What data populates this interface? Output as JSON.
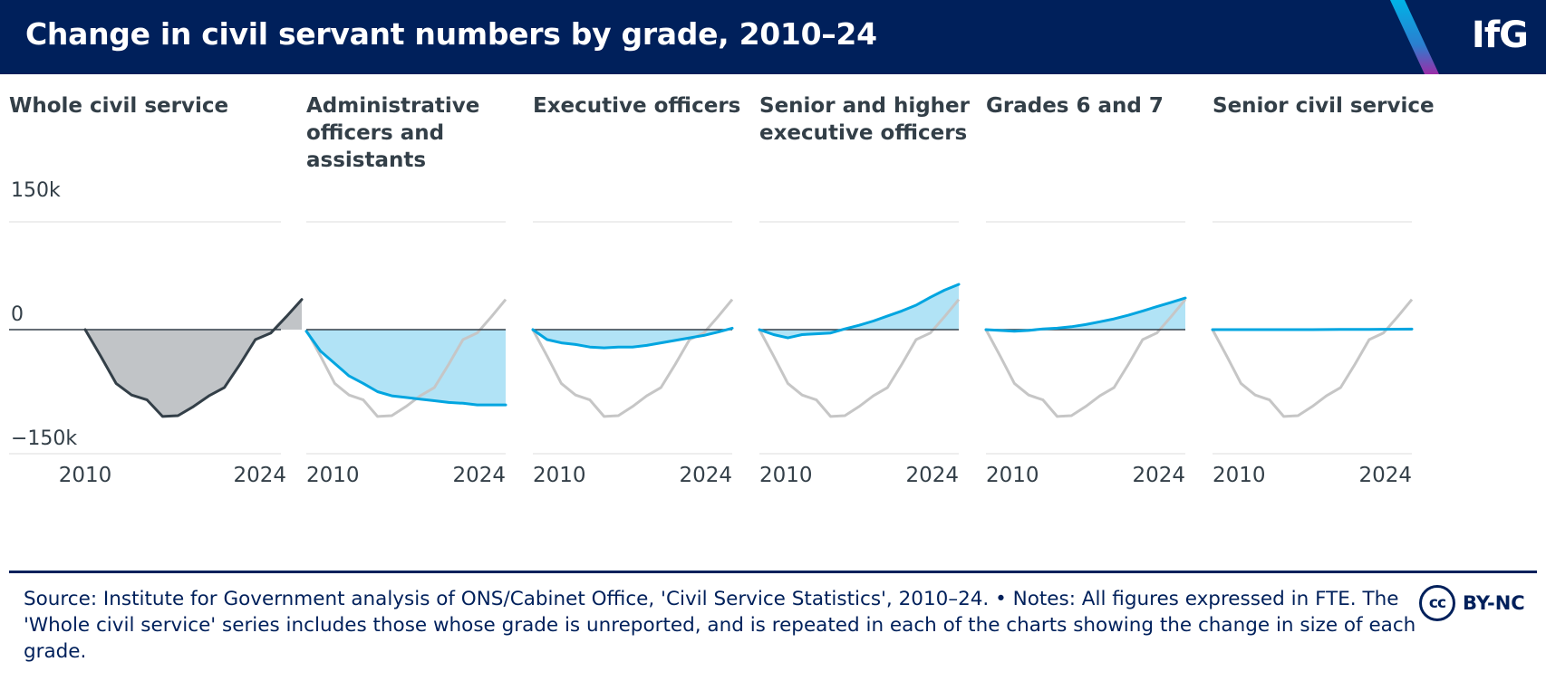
{
  "header": {
    "title": "Change in civil servant numbers by grade, 2010–24",
    "logo": "IfG"
  },
  "colors": {
    "navy": "#00205b",
    "whole_line": "#333f48",
    "whole_fill": "#c1c4c7",
    "grade_line": "#00a5e0",
    "grade_fill": "#b1e3f6",
    "reference_line": "#c6c6c6",
    "grid": "#e4e4e4",
    "zero_line": "#333f48"
  },
  "chart_data": {
    "type": "area",
    "units": "FTE change since 2010",
    "x": [
      2010,
      2011,
      2012,
      2013,
      2014,
      2015,
      2016,
      2017,
      2018,
      2019,
      2020,
      2021,
      2022,
      2023,
      2024
    ],
    "ylim": [
      -150000,
      150000
    ],
    "yticks": [
      {
        "value": 150000,
        "label": "150k"
      },
      {
        "value": 0,
        "label": "0"
      },
      {
        "value": -150000,
        "label": "−150k"
      }
    ],
    "xticks": [
      {
        "value": 2010,
        "label": "2010"
      },
      {
        "value": 2024,
        "label": "2024"
      }
    ],
    "reference_series": "Whole civil service",
    "series": [
      {
        "name": "Whole civil service",
        "values": [
          0,
          -32000,
          -65000,
          -79000,
          -85000,
          -105000,
          -104000,
          -93000,
          -80000,
          -70000,
          -42000,
          -12000,
          -4000,
          18000,
          42000
        ]
      },
      {
        "name": "Administrative officers and assistants",
        "values": [
          -2000,
          -26000,
          -41000,
          -56000,
          -65000,
          -75000,
          -80000,
          -82000,
          -84000,
          -86000,
          -88000,
          -89000,
          -91000,
          -91000,
          -91000
        ]
      },
      {
        "name": "Executive officers",
        "values": [
          0,
          -12000,
          -16000,
          -18000,
          -21000,
          -22000,
          -21000,
          -21000,
          -19000,
          -16000,
          -13000,
          -10000,
          -7000,
          -3000,
          2000
        ]
      },
      {
        "name": "Senior and higher executive officers",
        "values": [
          0,
          -6000,
          -10000,
          -6000,
          -5000,
          -4000,
          1000,
          6000,
          12000,
          19000,
          26000,
          34000,
          45000,
          55000,
          63000
        ]
      },
      {
        "name": "Grades 6 and 7",
        "values": [
          0,
          -1000,
          -2000,
          -1000,
          1000,
          2000,
          4000,
          7000,
          11000,
          15000,
          20000,
          26000,
          32000,
          38000,
          44000
        ]
      },
      {
        "name": "Senior civil service",
        "values": [
          0,
          0,
          0,
          0,
          0,
          0,
          0,
          0,
          100,
          200,
          300,
          400,
          500,
          600,
          700
        ]
      }
    ],
    "panels": [
      {
        "title": "Whole civil service"
      },
      {
        "title": "Administrative officers and assistants"
      },
      {
        "title": "Executive officers"
      },
      {
        "title": "Senior and higher executive officers"
      },
      {
        "title": "Grades 6 and 7"
      },
      {
        "title": "Senior civil service"
      }
    ]
  },
  "footer": {
    "source": "Source: Institute for Government analysis of ONS/Cabinet Office, 'Civil Service Statistics', 2010–24. • Notes: All figures expressed in FTE. The 'Whole civil service' series includes those whose grade is unreported, and is repeated in each of the charts showing the change in size of each grade.",
    "licence_icon": "cc-icon",
    "licence_icon_text": "cc",
    "licence": "BY-NC"
  }
}
